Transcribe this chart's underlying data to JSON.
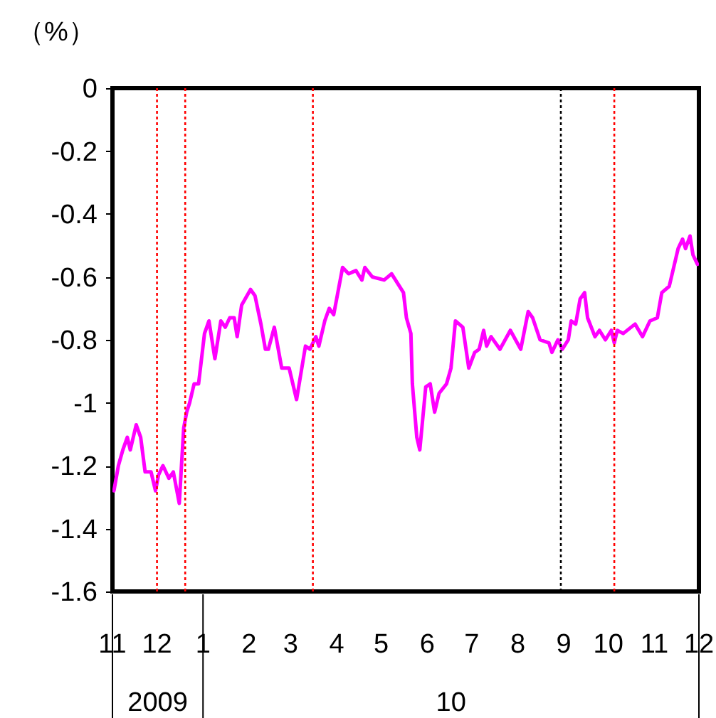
{
  "chart_data": {
    "type": "line",
    "ylabel": "（%）",
    "x": [
      "2009-11-02",
      "2009-11-05",
      "2009-11-08",
      "2009-11-11",
      "2009-11-13",
      "2009-11-17",
      "2009-11-20",
      "2009-11-23",
      "2009-11-27",
      "2009-11-30",
      "2009-12-02",
      "2009-12-05",
      "2009-12-09",
      "2009-12-12",
      "2009-12-16",
      "2009-12-19",
      "2009-12-21",
      "2009-12-23",
      "2009-12-26",
      "2009-12-29",
      "2010-01-02",
      "2010-01-05",
      "2010-01-09",
      "2010-01-13",
      "2010-01-16",
      "2010-01-19",
      "2010-01-22",
      "2010-01-24",
      "2010-01-27",
      "2010-02-02",
      "2010-02-05",
      "2010-02-09",
      "2010-02-12",
      "2010-02-14",
      "2010-02-18",
      "2010-02-23",
      "2010-02-28",
      "2010-03-05",
      "2010-03-11",
      "2010-03-14",
      "2010-03-18",
      "2010-03-20",
      "2010-03-24",
      "2010-03-27",
      "2010-03-30",
      "2010-04-05",
      "2010-04-09",
      "2010-04-14",
      "2010-04-18",
      "2010-04-20",
      "2010-04-25",
      "2010-05-03",
      "2010-05-08",
      "2010-05-12",
      "2010-05-16",
      "2010-05-18",
      "2010-05-21",
      "2010-05-22",
      "2010-05-25",
      "2010-05-27",
      "2010-05-31",
      "2010-06-03",
      "2010-06-06",
      "2010-06-09",
      "2010-06-14",
      "2010-06-17",
      "2010-06-20",
      "2010-06-25",
      "2010-06-29",
      "2010-07-03",
      "2010-07-06",
      "2010-07-09",
      "2010-07-11",
      "2010-07-14",
      "2010-07-20",
      "2010-07-27",
      "2010-08-03",
      "2010-08-08",
      "2010-08-11",
      "2010-08-16",
      "2010-08-22",
      "2010-08-24",
      "2010-08-28",
      "2010-08-31",
      "2010-09-04",
      "2010-09-06",
      "2010-09-09",
      "2010-09-12",
      "2010-09-15",
      "2010-09-17",
      "2010-09-22",
      "2010-09-25",
      "2010-09-29",
      "2010-10-03",
      "2010-10-05",
      "2010-10-07",
      "2010-10-11",
      "2010-10-19",
      "2010-10-24",
      "2010-10-29",
      "2010-11-03",
      "2010-11-06",
      "2010-11-11",
      "2010-11-14",
      "2010-11-17",
      "2010-11-20",
      "2010-11-22",
      "2010-11-25",
      "2010-11-27",
      "2010-11-30"
    ],
    "series": [
      {
        "color": "#ff00ff",
        "values": [
          -1.28,
          -1.2,
          -1.15,
          -1.11,
          -1.15,
          -1.07,
          -1.11,
          -1.22,
          -1.22,
          -1.28,
          -1.23,
          -1.2,
          -1.24,
          -1.22,
          -1.32,
          -1.08,
          -1.03,
          -1.0,
          -0.94,
          -0.94,
          -0.78,
          -0.74,
          -0.86,
          -0.74,
          -0.76,
          -0.73,
          -0.73,
          -0.79,
          -0.69,
          -0.64,
          -0.66,
          -0.75,
          -0.83,
          -0.83,
          -0.76,
          -0.89,
          -0.89,
          -0.99,
          -0.82,
          -0.83,
          -0.79,
          -0.82,
          -0.74,
          -0.7,
          -0.72,
          -0.57,
          -0.59,
          -0.58,
          -0.61,
          -0.57,
          -0.6,
          -0.61,
          -0.59,
          -0.62,
          -0.65,
          -0.73,
          -0.78,
          -0.94,
          -1.11,
          -1.15,
          -0.95,
          -0.94,
          -1.03,
          -0.97,
          -0.94,
          -0.89,
          -0.74,
          -0.76,
          -0.89,
          -0.84,
          -0.83,
          -0.77,
          -0.82,
          -0.79,
          -0.83,
          -0.77,
          -0.83,
          -0.71,
          -0.73,
          -0.8,
          -0.81,
          -0.84,
          -0.8,
          -0.83,
          -0.8,
          -0.74,
          -0.75,
          -0.67,
          -0.65,
          -0.73,
          -0.79,
          -0.77,
          -0.8,
          -0.77,
          -0.81,
          -0.77,
          -0.78,
          -0.75,
          -0.79,
          -0.74,
          -0.73,
          -0.65,
          -0.63,
          -0.57,
          -0.51,
          -0.48,
          -0.51,
          -0.47,
          -0.53,
          -0.56
        ]
      }
    ],
    "xlim": [
      "2009-11-01",
      "2010-12-01"
    ],
    "xticks": [
      {
        "value": "2009-11-01",
        "label": "11"
      },
      {
        "value": "2009-12-01",
        "label": "12"
      },
      {
        "value": "2010-01-01",
        "label": "1"
      },
      {
        "value": "2010-02-01",
        "label": "2"
      },
      {
        "value": "2010-03-01",
        "label": "3"
      },
      {
        "value": "2010-04-01",
        "label": "4"
      },
      {
        "value": "2010-05-01",
        "label": "5"
      },
      {
        "value": "2010-06-01",
        "label": "6"
      },
      {
        "value": "2010-07-01",
        "label": "7"
      },
      {
        "value": "2010-08-01",
        "label": "8"
      },
      {
        "value": "2010-09-01",
        "label": "9"
      },
      {
        "value": "2010-10-01",
        "label": "10"
      },
      {
        "value": "2010-11-01",
        "label": "11"
      },
      {
        "value": "2010-12-01",
        "label": "12"
      }
    ],
    "ylim": [
      -1.6,
      0
    ],
    "yticks": [
      0,
      -0.2,
      -0.4,
      -0.6,
      -0.8,
      -1,
      -1.2,
      -1.4,
      -1.6
    ],
    "ref_lines": [
      {
        "axis": "x",
        "value": "2009-12-01",
        "color": "#ff0000",
        "line_style": "dotted"
      },
      {
        "axis": "x",
        "value": "2009-12-20",
        "color": "#ff0000",
        "line_style": "dotted"
      },
      {
        "axis": "x",
        "value": "2010-03-16",
        "color": "#ff0000",
        "line_style": "dotted"
      },
      {
        "axis": "x",
        "value": "2010-08-30",
        "color": "#000000",
        "line_style": "dotted"
      },
      {
        "axis": "x",
        "value": "2010-10-05",
        "color": "#ff0000",
        "line_style": "dotted"
      }
    ],
    "annotations": [
      "2009",
      "10"
    ]
  }
}
